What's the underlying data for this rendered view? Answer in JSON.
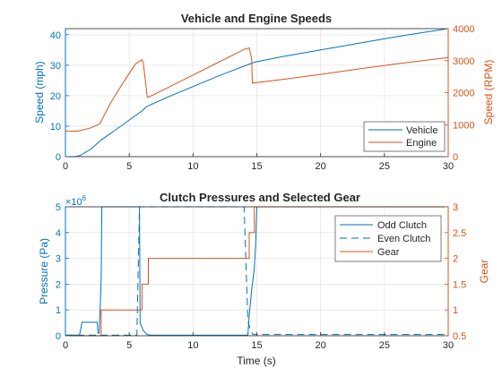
{
  "colors": {
    "blue": "#0072BD",
    "orange": "#D95319",
    "axis": "#262626",
    "grid": "#e6e6e6"
  },
  "chart_data": [
    {
      "type": "line",
      "title": "Vehicle and Engine Speeds",
      "xlabel": "",
      "ylabel_left": "Speed (mph)",
      "ylabel_right": "Speed (RPM)",
      "xlim": [
        0,
        30
      ],
      "ylim_left": [
        0,
        42
      ],
      "ylim_right": [
        0,
        4000
      ],
      "xticks": [
        "0",
        "5",
        "10",
        "15",
        "20",
        "25",
        "30"
      ],
      "yticks_left": [
        "0",
        "10",
        "20",
        "30",
        "40"
      ],
      "yticks_right": [
        "0",
        "1000",
        "2000",
        "3000",
        "4000"
      ],
      "grid": true,
      "legend": "bottom-right",
      "series": [
        {
          "name": "Vehicle",
          "axis": "left",
          "color": "#0072BD",
          "x": [
            0,
            0.8,
            1.2,
            2.0,
            2.8,
            4.0,
            5.0,
            6.0,
            6.4,
            8.0,
            10.0,
            12.0,
            14.0,
            14.8,
            17,
            20,
            23,
            26,
            28,
            30
          ],
          "y": [
            0,
            0,
            0.5,
            2.5,
            5.5,
            9,
            12,
            15,
            16.5,
            19.5,
            23,
            26.5,
            29.7,
            31,
            32.8,
            35,
            37.2,
            39.4,
            40.7,
            42
          ]
        },
        {
          "name": "Engine",
          "axis": "right",
          "color": "#D95319",
          "x": [
            0,
            1.0,
            2.0,
            2.7,
            3.5,
            4.5,
            5.5,
            6.0,
            6.1,
            6.4,
            6.45,
            8,
            10,
            12,
            14.0,
            14.4,
            14.6,
            14.65,
            17,
            20,
            23,
            26,
            30
          ],
          "y": [
            800,
            800,
            900,
            1030,
            1650,
            2300,
            2900,
            3030,
            2950,
            1900,
            1850,
            2150,
            2550,
            2950,
            3350,
            3400,
            3050,
            2300,
            2410,
            2570,
            2740,
            2900,
            3100
          ]
        }
      ]
    },
    {
      "type": "line",
      "title": "Clutch Pressures and Selected Gear",
      "xlabel": "Time (s)",
      "ylabel_left": "Pressure (Pa)",
      "ylabel_right": "Gear",
      "exponent": "×10",
      "exponent_power": "6",
      "xlim": [
        0,
        30
      ],
      "ylim_left": [
        0,
        5
      ],
      "ylim_right": [
        0.5,
        3
      ],
      "xticks": [
        "0",
        "5",
        "10",
        "15",
        "20",
        "25",
        "30"
      ],
      "yticks_left": [
        "0",
        "1",
        "2",
        "3",
        "4",
        "5"
      ],
      "yticks_right": [
        "0.5",
        "1",
        "1.5",
        "2",
        "2.5",
        "3"
      ],
      "grid": true,
      "legend": "top-right",
      "series": [
        {
          "name": "Odd Clutch",
          "axis": "left",
          "color": "#0072BD",
          "dash": "",
          "x": [
            0,
            1.1,
            1.3,
            2.5,
            2.55,
            2.65,
            2.8,
            2.85,
            5.8,
            5.85,
            6.1,
            6.4,
            6.7,
            14.3,
            14.4,
            14.6,
            14.8,
            14.9,
            15.0,
            30
          ],
          "y": [
            0.02,
            0.02,
            0.52,
            0.52,
            0.1,
            0.1,
            2.2,
            5,
            5,
            0.5,
            0.2,
            0.05,
            0.02,
            0.02,
            0.8,
            1.8,
            2.6,
            3.5,
            5,
            5
          ]
        },
        {
          "name": "Even Clutch",
          "axis": "left",
          "color": "#0072BD",
          "dash": "8 5",
          "x": [
            0,
            5.6,
            5.8,
            5.9,
            6.1,
            6.3,
            6.5,
            14.0,
            14.3,
            14.5,
            14.7,
            30
          ],
          "y": [
            0.02,
            0.02,
            5,
            5,
            5,
            5,
            5,
            5,
            0.6,
            0.2,
            0.05,
            0.05
          ]
        },
        {
          "name": "Gear",
          "axis": "right",
          "color": "#D95319",
          "dash": "",
          "x": [
            0,
            2.8,
            2.8,
            6.0,
            6.0,
            6.5,
            6.5,
            14.4,
            14.4,
            14.8,
            14.8,
            30
          ],
          "y": [
            0.5,
            0.5,
            1,
            1,
            1.5,
            1.5,
            2,
            2,
            2.5,
            2.5,
            3,
            3
          ]
        }
      ]
    }
  ]
}
